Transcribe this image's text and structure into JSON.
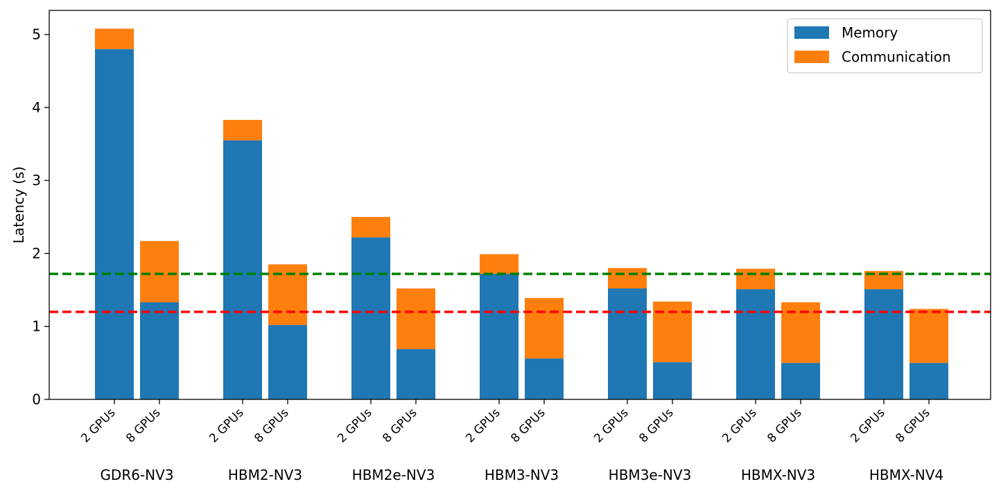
{
  "chart_data": {
    "type": "bar",
    "stacked": true,
    "groups": [
      "GDR6-NV3",
      "HBM2-NV3",
      "HBM2e-NV3",
      "HBM3-NV3",
      "HBM3e-NV3",
      "HBMX-NV3",
      "HBMX-NV4"
    ],
    "subcategories": [
      "2 GPUs",
      "8 GPUs"
    ],
    "series": [
      {
        "name": "Memory",
        "color": "#1f77b4",
        "values": [
          [
            4.8,
            1.33
          ],
          [
            3.55,
            1.02
          ],
          [
            2.22,
            0.69
          ],
          [
            1.72,
            0.56
          ],
          [
            1.52,
            0.51
          ],
          [
            1.51,
            0.5
          ],
          [
            1.51,
            0.5
          ]
        ]
      },
      {
        "name": "Communication",
        "color": "#ff7f0e",
        "values": [
          [
            0.28,
            0.84
          ],
          [
            0.28,
            0.83
          ],
          [
            0.28,
            0.83
          ],
          [
            0.27,
            0.83
          ],
          [
            0.28,
            0.83
          ],
          [
            0.28,
            0.83
          ],
          [
            0.25,
            0.74
          ]
        ]
      }
    ],
    "reference_lines": [
      {
        "y": 1.72,
        "color": "#008000",
        "style": "dashed"
      },
      {
        "y": 1.2,
        "color": "#ff0000",
        "style": "dashed"
      }
    ],
    "ylabel": "Latency (s)",
    "xlabel": "",
    "title": "",
    "ylim": [
      0,
      5.33
    ],
    "yticks": [
      0,
      1,
      2,
      3,
      4,
      5
    ],
    "grid": false,
    "legend_position": "top-right"
  }
}
